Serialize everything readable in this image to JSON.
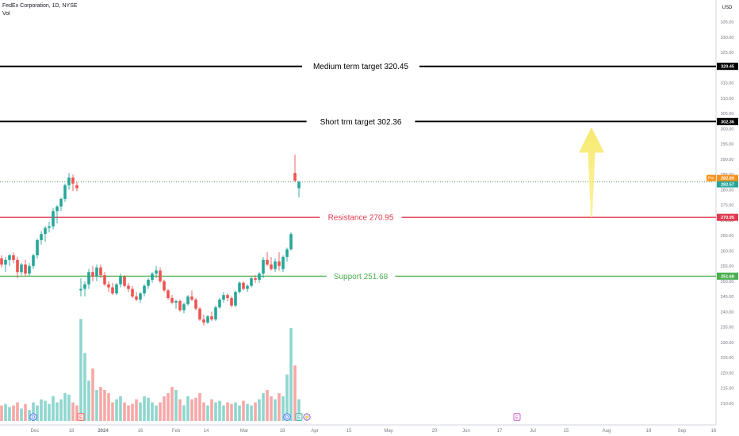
{
  "header": {
    "symbol": "FedEx Corporation, 1D, NYSE",
    "indicator": "Vol"
  },
  "colors": {
    "up": "#26a69a",
    "down": "#ef5350",
    "vol_up": "#8fd6ce",
    "vol_down": "#f7a8a6",
    "resistance": "#e03a4e",
    "support": "#4caf50",
    "target": "#000000",
    "pre_badge": "#f7931a",
    "arrow": "#f7ea6f"
  },
  "chart_data": {
    "type": "candlestick",
    "currency": "USD",
    "ylim": [
      205,
      337
    ],
    "y_ticks": [
      210,
      215,
      220,
      225,
      230,
      235,
      240,
      245,
      250,
      255,
      260,
      265,
      270,
      275,
      280,
      285,
      290,
      295,
      300,
      305,
      310,
      315,
      320,
      325,
      330,
      335
    ],
    "x_ticks": [
      "Dec",
      "18",
      "2024",
      "16",
      "Feb",
      "14",
      "Mar",
      "18",
      "Apr",
      "15",
      "May",
      "20",
      "Jun",
      "17",
      "Jul",
      "15",
      "Aug",
      "19",
      "Sep",
      "16"
    ],
    "candles": [
      {
        "o": 257.5,
        "h": 258.5,
        "l": 254.5,
        "c": 255.5
      },
      {
        "o": 255.5,
        "h": 258,
        "l": 253,
        "c": 257
      },
      {
        "o": 257,
        "h": 259,
        "l": 255,
        "c": 258.5
      },
      {
        "o": 258.5,
        "h": 259.5,
        "l": 256,
        "c": 257
      },
      {
        "o": 257,
        "h": 258,
        "l": 251,
        "c": 253
      },
      {
        "o": 253,
        "h": 256,
        "l": 252,
        "c": 255.5
      },
      {
        "o": 255.5,
        "h": 257,
        "l": 251.5,
        "c": 252.5
      },
      {
        "o": 252.5,
        "h": 256,
        "l": 251.5,
        "c": 255
      },
      {
        "o": 255,
        "h": 259,
        "l": 254,
        "c": 258.5
      },
      {
        "o": 258.5,
        "h": 264,
        "l": 257.5,
        "c": 263.5
      },
      {
        "o": 263.5,
        "h": 266.5,
        "l": 262,
        "c": 265.5
      },
      {
        "o": 265.5,
        "h": 268,
        "l": 263,
        "c": 267.5
      },
      {
        "o": 267.5,
        "h": 269.5,
        "l": 266,
        "c": 268
      },
      {
        "o": 268,
        "h": 274,
        "l": 267,
        "c": 273
      },
      {
        "o": 273,
        "h": 275,
        "l": 269,
        "c": 274.5
      },
      {
        "o": 274.5,
        "h": 277.5,
        "l": 273,
        "c": 277
      },
      {
        "o": 277,
        "h": 282,
        "l": 276,
        "c": 281.5
      },
      {
        "o": 281.5,
        "h": 285.5,
        "l": 280,
        "c": 284
      },
      {
        "o": 284,
        "h": 285,
        "l": 279.5,
        "c": 282
      },
      {
        "o": 281.5,
        "h": 282.5,
        "l": 279.5,
        "c": 280.5
      },
      {
        "o": 247,
        "h": 251,
        "l": 245,
        "c": 247.5
      },
      {
        "o": 247.5,
        "h": 250,
        "l": 245,
        "c": 249
      },
      {
        "o": 249,
        "h": 254,
        "l": 247.5,
        "c": 253
      },
      {
        "o": 253,
        "h": 255,
        "l": 250,
        "c": 251.5
      },
      {
        "o": 251.5,
        "h": 255.5,
        "l": 250,
        "c": 254.5
      },
      {
        "o": 254.5,
        "h": 255.5,
        "l": 251,
        "c": 252
      },
      {
        "o": 252,
        "h": 253,
        "l": 248.5,
        "c": 249
      },
      {
        "o": 249,
        "h": 250,
        "l": 246.5,
        "c": 248
      },
      {
        "o": 248,
        "h": 249.5,
        "l": 245.5,
        "c": 246
      },
      {
        "o": 246,
        "h": 249.5,
        "l": 245.5,
        "c": 249
      },
      {
        "o": 249,
        "h": 252.5,
        "l": 248,
        "c": 251.5
      },
      {
        "o": 251.5,
        "h": 252,
        "l": 248,
        "c": 248.5
      },
      {
        "o": 248.5,
        "h": 249.5,
        "l": 246.5,
        "c": 247.5
      },
      {
        "o": 247.5,
        "h": 248.5,
        "l": 244.5,
        "c": 245
      },
      {
        "o": 245,
        "h": 246.5,
        "l": 243.5,
        "c": 244
      },
      {
        "o": 244,
        "h": 246.5,
        "l": 243,
        "c": 246
      },
      {
        "o": 246,
        "h": 249,
        "l": 245,
        "c": 248.5
      },
      {
        "o": 248.5,
        "h": 251,
        "l": 247.5,
        "c": 250.5
      },
      {
        "o": 250.5,
        "h": 253,
        "l": 249.5,
        "c": 252.5
      },
      {
        "o": 252.5,
        "h": 255,
        "l": 251,
        "c": 253.5
      },
      {
        "o": 253.5,
        "h": 254.5,
        "l": 249.5,
        "c": 250
      },
      {
        "o": 250,
        "h": 250.5,
        "l": 246.5,
        "c": 247
      },
      {
        "o": 247,
        "h": 247.5,
        "l": 244,
        "c": 244.5
      },
      {
        "o": 244.5,
        "h": 245.5,
        "l": 242.5,
        "c": 243
      },
      {
        "o": 243,
        "h": 244,
        "l": 241,
        "c": 243.5
      },
      {
        "o": 243.5,
        "h": 244,
        "l": 240,
        "c": 240.5
      },
      {
        "o": 240.5,
        "h": 243,
        "l": 239.5,
        "c": 242.5
      },
      {
        "o": 242.5,
        "h": 245.5,
        "l": 242,
        "c": 245
      },
      {
        "o": 245,
        "h": 247,
        "l": 243.5,
        "c": 244
      },
      {
        "o": 244,
        "h": 244.5,
        "l": 240.5,
        "c": 241
      },
      {
        "o": 241,
        "h": 241.5,
        "l": 237,
        "c": 237.5
      },
      {
        "o": 237.5,
        "h": 239,
        "l": 235.5,
        "c": 236.5
      },
      {
        "o": 236.5,
        "h": 239,
        "l": 236,
        "c": 238.5
      },
      {
        "o": 238.5,
        "h": 240,
        "l": 237,
        "c": 237.5
      },
      {
        "o": 237.5,
        "h": 242,
        "l": 237,
        "c": 241.5
      },
      {
        "o": 241.5,
        "h": 244.5,
        "l": 241,
        "c": 244
      },
      {
        "o": 244,
        "h": 246.5,
        "l": 243,
        "c": 245.5
      },
      {
        "o": 245.5,
        "h": 246,
        "l": 243.5,
        "c": 244.5
      },
      {
        "o": 244.5,
        "h": 245,
        "l": 241.5,
        "c": 242
      },
      {
        "o": 242,
        "h": 247,
        "l": 241.5,
        "c": 246.5
      },
      {
        "o": 246.5,
        "h": 250,
        "l": 246,
        "c": 249.5
      },
      {
        "o": 249.5,
        "h": 250,
        "l": 247,
        "c": 247.5
      },
      {
        "o": 247.5,
        "h": 249,
        "l": 246.5,
        "c": 248.5
      },
      {
        "o": 248.5,
        "h": 251.5,
        "l": 248,
        "c": 251
      },
      {
        "o": 251,
        "h": 252,
        "l": 249.5,
        "c": 250.5
      },
      {
        "o": 250.5,
        "h": 253,
        "l": 249.5,
        "c": 252.5
      },
      {
        "o": 252.5,
        "h": 258,
        "l": 251,
        "c": 257
      },
      {
        "o": 257,
        "h": 259.5,
        "l": 255,
        "c": 255.5
      },
      {
        "o": 255.5,
        "h": 258,
        "l": 253.5,
        "c": 254
      },
      {
        "o": 254,
        "h": 257.5,
        "l": 253,
        "c": 256.5
      },
      {
        "o": 256.5,
        "h": 259.5,
        "l": 253.5,
        "c": 255
      },
      {
        "o": 254,
        "h": 258.5,
        "l": 253,
        "c": 258
      },
      {
        "o": 258,
        "h": 261,
        "l": 256.5,
        "c": 260.5
      },
      {
        "o": 260.5,
        "h": 266,
        "l": 260,
        "c": 265.5
      },
      {
        "o": 285.5,
        "h": 291.5,
        "l": 282.5,
        "c": 283
      },
      {
        "o": 280.5,
        "h": 283,
        "l": 277.5,
        "c": 282.57
      }
    ],
    "volume": [
      0.5,
      0.55,
      0.45,
      0.5,
      0.6,
      0.4,
      0.55,
      0.35,
      0.6,
      0.5,
      0.7,
      0.65,
      0.55,
      0.8,
      0.6,
      0.7,
      0.9,
      0.85,
      0.6,
      0.5,
      3.3,
      2.2,
      1.3,
      1.7,
      1.0,
      1.1,
      1.0,
      0.9,
      0.6,
      0.7,
      0.8,
      0.6,
      0.5,
      0.55,
      0.7,
      0.6,
      0.8,
      0.75,
      0.6,
      0.5,
      0.6,
      0.8,
      0.9,
      1.1,
      1.0,
      0.7,
      0.5,
      0.8,
      0.7,
      0.75,
      0.9,
      0.6,
      0.5,
      0.7,
      0.6,
      0.65,
      0.5,
      0.6,
      0.55,
      0.6,
      0.5,
      0.65,
      0.55,
      0.5,
      0.6,
      0.7,
      0.9,
      1.0,
      0.8,
      0.7,
      0.9,
      0.8,
      1.5,
      3.0,
      1.8,
      0.7
    ],
    "levels": [
      {
        "label": "Medium term target 320.45",
        "value": 320.45,
        "badge": "320.45",
        "style": "target"
      },
      {
        "label": "Short trm target 302.36",
        "value": 302.36,
        "badge": "302.36",
        "style": "target"
      },
      {
        "label": "Resistance 270.95",
        "value": 270.95,
        "badge": "270.95",
        "style": "resistance"
      },
      {
        "label": "Support 251.68",
        "value": 251.68,
        "badge": "251.68",
        "style": "support"
      }
    ],
    "last_price": 282.57,
    "last_price_label": "282.57",
    "premarket": {
      "tag": "Pre",
      "value": 282.8,
      "label": "282.80"
    },
    "arrow": {
      "from": 270.95,
      "to": 300.5
    },
    "event_markers": [
      {
        "index": 8,
        "glyph": "D",
        "kind": "dividend"
      },
      {
        "index": 20,
        "glyph": "E",
        "kind": "earnings-down"
      },
      {
        "index": 72,
        "glyph": "D",
        "kind": "dividend"
      },
      {
        "index": 75,
        "glyph": "E",
        "kind": "earnings-up"
      },
      {
        "index": 77,
        "glyph": "⚡",
        "kind": "news"
      },
      {
        "future_label": "E",
        "x_pos": "between Jun 17 and Jul",
        "kind": "earnings-future"
      }
    ]
  }
}
